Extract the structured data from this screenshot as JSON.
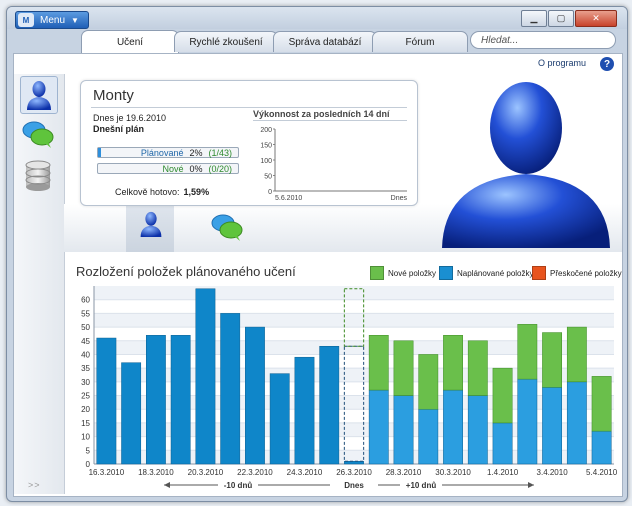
{
  "menu": {
    "label": "Menu",
    "logo": "M"
  },
  "window_buttons": {
    "minimize": "▁",
    "maximize": "▢",
    "close": "✕"
  },
  "tabs": [
    {
      "label": "Učení",
      "active": true
    },
    {
      "label": "Rychlé zkoušení",
      "active": false
    },
    {
      "label": "Správa databází",
      "active": false
    },
    {
      "label": "Fórum",
      "active": false
    }
  ],
  "search": {
    "placeholder": "Hledat..."
  },
  "top_link": "O programu",
  "help_label": "?",
  "sidebar": {
    "items": [
      {
        "name": "profile",
        "icon": "user-icon",
        "selected": true
      },
      {
        "name": "forum",
        "icon": "chat-bubbles-icon",
        "selected": false
      },
      {
        "name": "databases",
        "icon": "database-icon",
        "selected": false
      }
    ],
    "expand": ">>"
  },
  "profile": {
    "name": "Monty",
    "date_text": "Dnes je 19.6.2010",
    "plan_label": "Dnešní plán",
    "planned": {
      "label": "Plánované",
      "percent": "2%",
      "count": "(1/43)",
      "fill": 0.02
    },
    "new": {
      "label": "Nové",
      "percent": "0%",
      "count": "(0/20)",
      "fill": 0.0
    },
    "total_label": "Celkově hotovo:",
    "total_value": "1,59%",
    "perf_title": "Výkonnost za posledních 14 dní",
    "perf_chart": {
      "y_ticks": [
        "200",
        "150",
        "100",
        "50",
        "0"
      ],
      "x_start": "5.6.2010",
      "x_end": "Dnes"
    }
  },
  "chart_title": "Rozložení položek plánovaného učení",
  "colors": {
    "new": "#6abf4b",
    "planned": "#1a8fd1",
    "skipped": "#e8541e"
  },
  "legend": [
    {
      "label": "Nové položky",
      "color": "#6abf4b"
    },
    {
      "label": "Naplánované položky",
      "color": "#1a8fd1"
    },
    {
      "label": "Přeskočené položky",
      "color": "#e8541e"
    }
  ],
  "chart_data": {
    "type": "bar",
    "stacked": true,
    "ylim": [
      0,
      65
    ],
    "y_ticks": [
      0,
      5,
      10,
      15,
      20,
      25,
      30,
      35,
      40,
      45,
      50,
      55,
      60
    ],
    "categories": [
      "16.3.2010",
      "17.3.2010",
      "18.3.2010",
      "19.3.2010",
      "20.3.2010",
      "21.3.2010",
      "22.3.2010",
      "23.3.2010",
      "24.3.2010",
      "25.3.2010",
      "26.3.2010",
      "27.3.2010",
      "28.3.2010",
      "29.3.2010",
      "30.3.2010",
      "31.3.2010",
      "1.4.2010",
      "2.4.2010",
      "3.4.2010",
      "4.4.2010",
      "5.4.2010"
    ],
    "x_tick_labels": [
      "16.3.2010",
      "18.3.2010",
      "20.3.2010",
      "22.3.2010",
      "24.3.2010",
      "26.3.2010",
      "28.3.2010",
      "30.3.2010",
      "1.4.2010",
      "3.4.2010",
      "5.4.2010"
    ],
    "series": [
      {
        "name": "Naplánované položky",
        "values": [
          46,
          37,
          47,
          47,
          64,
          55,
          50,
          33,
          39,
          43,
          1,
          27,
          25,
          20,
          27,
          25,
          15,
          31,
          28,
          30,
          12
        ]
      },
      {
        "name": "Nové položky",
        "values": [
          0,
          0,
          0,
          0,
          0,
          0,
          0,
          0,
          0,
          0,
          42,
          20,
          20,
          20,
          20,
          20,
          20,
          20,
          20,
          20,
          20
        ]
      },
      {
        "name": "Přeskočené položky",
        "values": [
          0,
          0,
          0,
          0,
          0,
          0,
          0,
          0,
          0,
          0,
          0,
          0,
          0,
          0,
          0,
          0,
          0,
          0,
          0,
          0,
          0
        ]
      }
    ],
    "today_index": 10,
    "bottom_labels": {
      "left": "-10 dnů",
      "center": "Dnes",
      "right": "+10 dnů"
    }
  }
}
